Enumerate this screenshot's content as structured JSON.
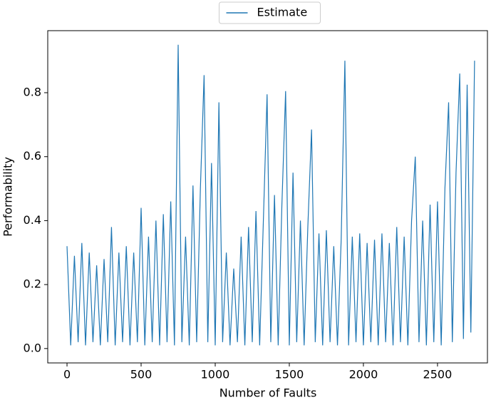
{
  "chart_data": {
    "type": "line",
    "xlabel": "Number of Faults",
    "ylabel": "Performability",
    "legend": "upper center",
    "xlim": [
      -130,
      2837
    ],
    "ylim": [
      -0.045,
      0.994
    ],
    "xticks": [
      0,
      500,
      1000,
      1500,
      2000,
      2500
    ],
    "yticks": [
      {
        "value": 0,
        "label": "0.0"
      },
      0.2,
      0.4,
      0.6,
      0.8
    ],
    "x": [
      0,
      25,
      50,
      75,
      100,
      125,
      150,
      175,
      200,
      225,
      250,
      275,
      300,
      325,
      350,
      375,
      400,
      425,
      450,
      475,
      500,
      525,
      550,
      575,
      600,
      625,
      650,
      675,
      700,
      725,
      750,
      775,
      800,
      825,
      850,
      875,
      900,
      925,
      950,
      975,
      1000,
      1025,
      1050,
      1075,
      1100,
      1125,
      1150,
      1175,
      1200,
      1225,
      1250,
      1275,
      1300,
      1325,
      1350,
      1375,
      1400,
      1425,
      1450,
      1475,
      1500,
      1525,
      1550,
      1575,
      1600,
      1625,
      1650,
      1675,
      1700,
      1725,
      1750,
      1775,
      1800,
      1825,
      1850,
      1875,
      1900,
      1925,
      1950,
      1975,
      2000,
      2025,
      2050,
      2075,
      2100,
      2125,
      2150,
      2175,
      2200,
      2225,
      2250,
      2275,
      2300,
      2325,
      2350,
      2375,
      2400,
      2425,
      2450,
      2475,
      2500,
      2525,
      2550,
      2575,
      2600,
      2625,
      2650,
      2675,
      2700,
      2725,
      2750
    ],
    "series": [
      {
        "name": "Estimate",
        "color": "#1f77b4",
        "values": [
          0.32,
          0.01,
          0.29,
          0.02,
          0.33,
          0.01,
          0.3,
          0.02,
          0.26,
          0.01,
          0.28,
          0.02,
          0.38,
          0.01,
          0.3,
          0.02,
          0.32,
          0.01,
          0.3,
          0.02,
          0.44,
          0.01,
          0.35,
          0.02,
          0.4,
          0.01,
          0.42,
          0.02,
          0.46,
          0.01,
          0.95,
          0.02,
          0.35,
          0.01,
          0.51,
          0.02,
          0.5,
          0.855,
          0.02,
          0.58,
          0.01,
          0.77,
          0.02,
          0.3,
          0.01,
          0.25,
          0.02,
          0.35,
          0.01,
          0.38,
          0.02,
          0.43,
          0.01,
          0.4,
          0.795,
          0.02,
          0.48,
          0.01,
          0.45,
          0.805,
          0.01,
          0.55,
          0.02,
          0.4,
          0.01,
          0.38,
          0.685,
          0.02,
          0.36,
          0.01,
          0.37,
          0.02,
          0.32,
          0.01,
          0.34,
          0.9,
          0.01,
          0.35,
          0.02,
          0.36,
          0.01,
          0.33,
          0.02,
          0.34,
          0.01,
          0.36,
          0.02,
          0.33,
          0.01,
          0.38,
          0.02,
          0.35,
          0.01,
          0.4,
          0.6,
          0.02,
          0.4,
          0.01,
          0.45,
          0.02,
          0.46,
          0.01,
          0.5,
          0.77,
          0.02,
          0.55,
          0.86,
          0.03,
          0.825,
          0.05,
          0.9
        ]
      }
    ]
  }
}
